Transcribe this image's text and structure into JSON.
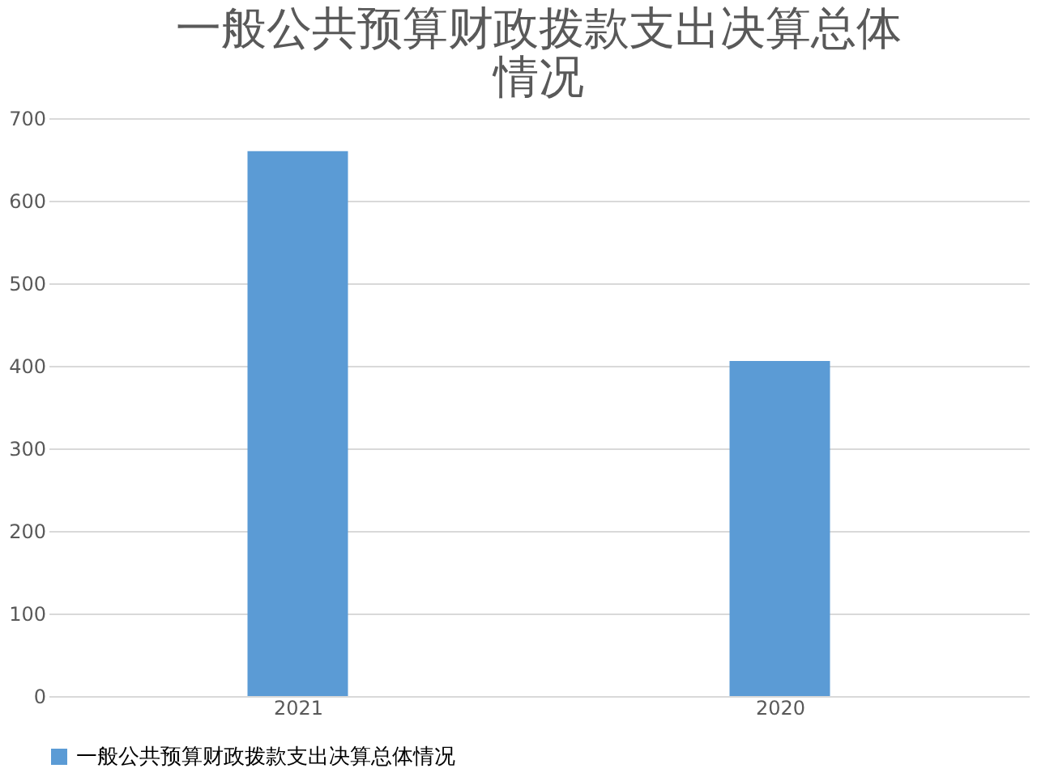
{
  "chart_data": {
    "type": "bar",
    "title": "一般公共预算财政拨款支出决算总体情况",
    "categories": [
      "2021",
      "2020"
    ],
    "series": [
      {
        "name": "一般公共预算财政拨款支出决算总体情况",
        "color": "#5b9bd5",
        "values": [
          660,
          406
        ]
      }
    ],
    "ylim": [
      0,
      700
    ],
    "yticks": [
      0,
      100,
      200,
      300,
      400,
      500,
      600,
      700
    ],
    "grid": "y",
    "legend": "bottom"
  }
}
